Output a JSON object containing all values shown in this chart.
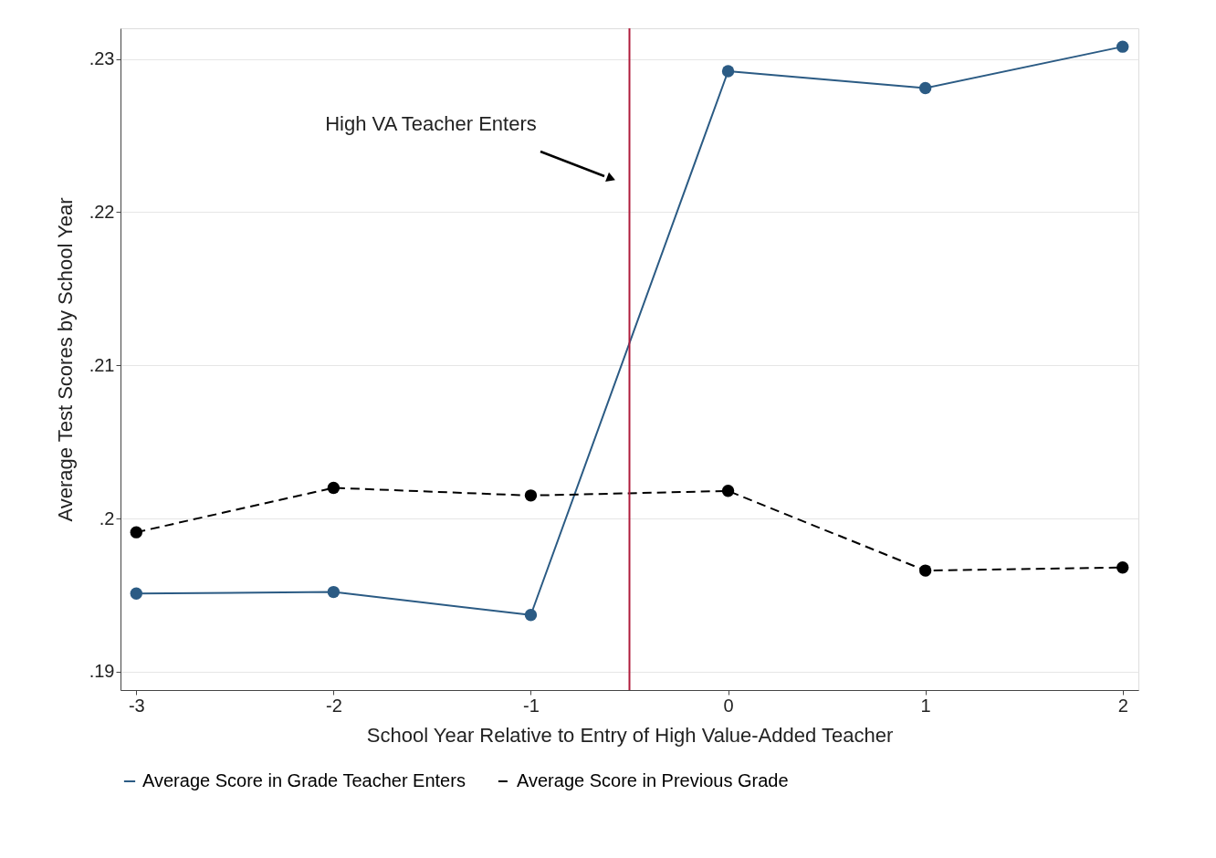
{
  "chart_data": {
    "type": "line",
    "xlabel": "School Year Relative to Entry of High Value-Added Teacher",
    "ylabel": "Average Test Scores by School Year",
    "x": [
      -3,
      -2,
      -1,
      0,
      1,
      2
    ],
    "series": [
      {
        "name": "Average Score in Grade Teacher Enters",
        "color": "#2b5b84",
        "values": [
          0.1951,
          0.1952,
          0.1937,
          0.2292,
          0.2281,
          0.2308
        ],
        "line_style": "solid"
      },
      {
        "name": "Average Score in Previous Grade",
        "color": "#000000",
        "values": [
          0.1991,
          0.202,
          0.2015,
          0.2018,
          0.1966,
          0.1968
        ],
        "line_style": "dashed"
      }
    ],
    "marker": "circle",
    "xlim": [
      -3.08,
      2.08
    ],
    "xticks": [
      -3,
      -2,
      -1,
      0,
      1,
      2
    ],
    "ylim": [
      0.1888,
      0.232
    ],
    "yticks": [
      {
        "value": 0.19,
        "label": ".19"
      },
      {
        "value": 0.2,
        "label": ".2"
      },
      {
        "value": 0.21,
        "label": ".21"
      },
      {
        "value": 0.22,
        "label": ".22"
      },
      {
        "value": 0.23,
        "label": ".23"
      }
    ],
    "grid": "y",
    "legend": "bottom",
    "ref_lines": [
      {
        "axis": "x",
        "value": -0.5,
        "color": "#b01c3c"
      }
    ],
    "annotations": [
      "High VA Teacher Enters"
    ]
  }
}
